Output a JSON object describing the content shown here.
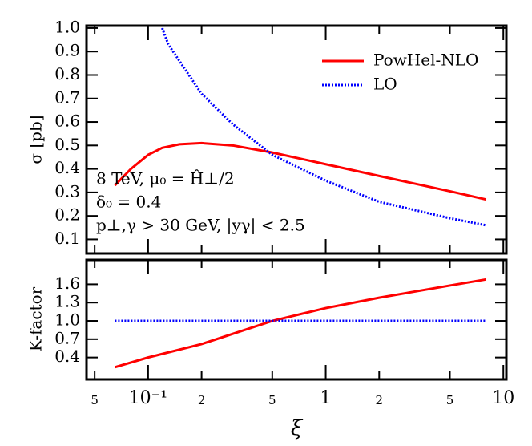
{
  "chart_data": [
    {
      "type": "line",
      "ylabel": "σ [pb]",
      "xlog": true,
      "xlim": [
        0.045,
        10.4
      ],
      "ylim": [
        0.04,
        1.01
      ],
      "yticks": [
        0.1,
        0.2,
        0.3,
        0.4,
        0.5,
        0.6,
        0.7,
        0.8,
        0.9,
        {
          "value": 1,
          "label": "1.0"
        }
      ],
      "legend": "upper right",
      "annotations": [
        "8 TeV, μ₀ = Ĥ⊥/2",
        "δ₀ = 0.4",
        "p⊥,γ > 30 GeV, |yγ| < 2.5"
      ],
      "series": [
        {
          "name": "PowHel-NLO",
          "color": "#ff0000",
          "style": "solid",
          "x": [
            0.065,
            0.08,
            0.1,
            0.12,
            0.15,
            0.2,
            0.3,
            0.5,
            1,
            2,
            5,
            8
          ],
          "values": [
            0.33,
            0.4,
            0.46,
            0.49,
            0.505,
            0.51,
            0.5,
            0.47,
            0.42,
            0.37,
            0.305,
            0.27
          ]
        },
        {
          "name": "LO",
          "color": "#0000ff",
          "style": "dotted",
          "x": [
            0.12,
            0.13,
            0.2,
            0.3,
            0.5,
            1,
            2,
            5,
            8
          ],
          "values": [
            1.0,
            0.93,
            0.72,
            0.59,
            0.46,
            0.35,
            0.26,
            0.19,
            0.16
          ]
        }
      ]
    },
    {
      "type": "line",
      "ylabel": "K-factor",
      "xlabel": "ξ",
      "xlog": true,
      "xlim": [
        0.045,
        10.4
      ],
      "ylim": [
        0.04,
        2.0
      ],
      "xticks": [
        {
          "value": 0.05,
          "label": "5"
        },
        {
          "value": 0.1,
          "label": "10⁻¹"
        },
        {
          "value": 0.2,
          "label": "2"
        },
        {
          "value": 0.5,
          "label": "5"
        },
        1,
        {
          "value": 2,
          "label": "2"
        },
        {
          "value": 5,
          "label": "5"
        },
        10
      ],
      "yticks": [
        0.4,
        0.7,
        {
          "value": 1,
          "label": "1.0"
        },
        1.3,
        1.6
      ],
      "series": [
        {
          "color": "#ff0000",
          "style": "solid",
          "x": [
            0.065,
            0.1,
            0.2,
            0.5,
            1,
            2,
            5,
            8
          ],
          "values": [
            0.24,
            0.4,
            0.62,
            1.0,
            1.21,
            1.38,
            1.58,
            1.68
          ]
        },
        {
          "color": "#0000ff",
          "style": "dotted",
          "x": [
            0.065,
            8
          ],
          "values": [
            1.0,
            1.0
          ]
        }
      ]
    }
  ]
}
